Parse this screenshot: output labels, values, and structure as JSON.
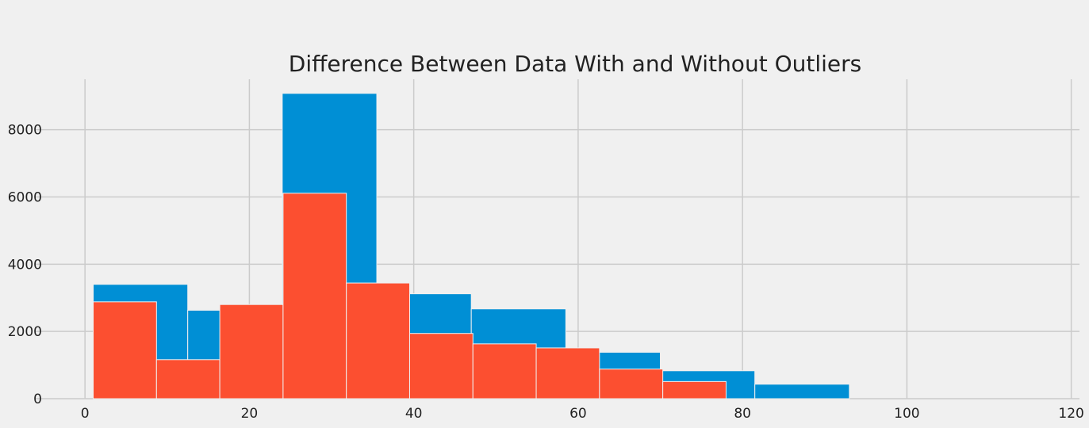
{
  "chart_data": {
    "type": "bar",
    "title": "Difference Between Data With and Without Outliers",
    "xlabel": "",
    "ylabel": "",
    "xlim": [
      -6,
      121
    ],
    "ylim": [
      0,
      9500
    ],
    "xticks": [
      0,
      20,
      40,
      60,
      80,
      100,
      120
    ],
    "yticks": [
      0,
      2000,
      4000,
      6000,
      8000
    ],
    "grid": true,
    "legend": "none",
    "colors": {
      "background": "#f0f0f0",
      "grid": "#cbcbcb",
      "text": "#222222",
      "series_1": "#008fd5",
      "series_2": "#fc4f30"
    },
    "series": [
      {
        "bins": [
          {
            "x0": 1.0,
            "x1": 12.5,
            "value": 3400
          },
          {
            "x0": 12.5,
            "x1": 24.0,
            "value": 2630
          },
          {
            "x0": 24.0,
            "x1": 35.5,
            "value": 9080
          },
          {
            "x0": 35.5,
            "x1": 47.0,
            "value": 3120
          },
          {
            "x0": 47.0,
            "x1": 58.5,
            "value": 2670
          },
          {
            "x0": 58.5,
            "x1": 70.0,
            "value": 1380
          },
          {
            "x0": 70.0,
            "x1": 81.5,
            "value": 830
          },
          {
            "x0": 81.5,
            "x1": 93.0,
            "value": 430
          }
        ]
      },
      {
        "bins": [
          {
            "x0": 1.0,
            "x1": 8.7,
            "value": 2880
          },
          {
            "x0": 8.7,
            "x1": 16.4,
            "value": 1160
          },
          {
            "x0": 16.4,
            "x1": 24.1,
            "value": 2800
          },
          {
            "x0": 24.1,
            "x1": 31.8,
            "value": 6110
          },
          {
            "x0": 31.8,
            "x1": 39.5,
            "value": 3440
          },
          {
            "x0": 39.5,
            "x1": 47.2,
            "value": 1940
          },
          {
            "x0": 47.2,
            "x1": 54.9,
            "value": 1630
          },
          {
            "x0": 54.9,
            "x1": 62.6,
            "value": 1510
          },
          {
            "x0": 62.6,
            "x1": 70.3,
            "value": 880
          },
          {
            "x0": 70.3,
            "x1": 78.0,
            "value": 510
          }
        ]
      }
    ]
  }
}
